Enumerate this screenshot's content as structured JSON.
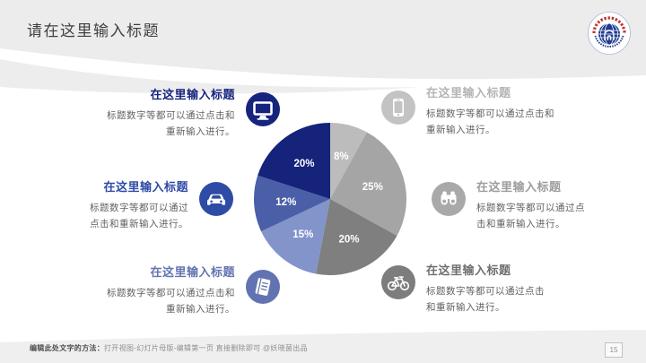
{
  "slide": {
    "title": "请在这里输入标题",
    "page_number": "15"
  },
  "features": {
    "left": [
      {
        "title": "在这里输入标题",
        "body": "标题数字等都可以通过点击和重新输入进行。",
        "icon": "monitor-icon",
        "color": "#16247e",
        "title_color": "#16247e"
      },
      {
        "title": "在这里输入标题",
        "body": "标题数字等都可以通过点击和重新输入进行。",
        "icon": "car-icon",
        "color": "#2e4ba6",
        "title_color": "#2e4ba6"
      },
      {
        "title": "在这里输入标题",
        "body": "标题数字等都可以通过点击和重新输入进行。",
        "icon": "book-icon",
        "color": "#6273b1",
        "title_color": "#6273b1"
      }
    ],
    "right": [
      {
        "title": "在这里输入标题",
        "body": "标题数字等都可以通过点击和重新输入进行。",
        "icon": "smartphone-icon",
        "color": "#c3c3c3",
        "title_color": "#b4b4b4"
      },
      {
        "title": "在这里输入标题",
        "body": "标题数字等都可以通过点击和重新输入进行。",
        "icon": "binoculars-icon",
        "color": "#a9a9a9",
        "title_color": "#9d9d9d"
      },
      {
        "title": "在这里输入标题",
        "body": "标题数字等都可以通过点击和重新输入进行。",
        "icon": "bicycle-icon",
        "color": "#7d7d7d",
        "title_color": "#6f6f6f"
      }
    ]
  },
  "chart_data": {
    "type": "pie",
    "title": "",
    "start_angle_deg": 0,
    "direction": "clockwise",
    "slices": [
      {
        "label": "8%",
        "value": 8,
        "color": "#bcbcbc"
      },
      {
        "label": "25%",
        "value": 25,
        "color": "#a5a5a5"
      },
      {
        "label": "20%",
        "value": 20,
        "color": "#7f7f7f"
      },
      {
        "label": "15%",
        "value": 15,
        "color": "#8294ca"
      },
      {
        "label": "12%",
        "value": 12,
        "color": "#4a5fa8"
      },
      {
        "label": "20%",
        "value": 20,
        "color": "#15237b"
      }
    ]
  },
  "footer": {
    "bold": "编辑此处文字的方法：",
    "rest": "打开视图-幻灯片母版-编辑第一页 直接删除即可 @妖晓菌出品"
  },
  "colors": {
    "header_band": "#ececec",
    "footer_band": "#efefef",
    "logo_red": "#c23030",
    "logo_blue": "#1e3a8f"
  }
}
